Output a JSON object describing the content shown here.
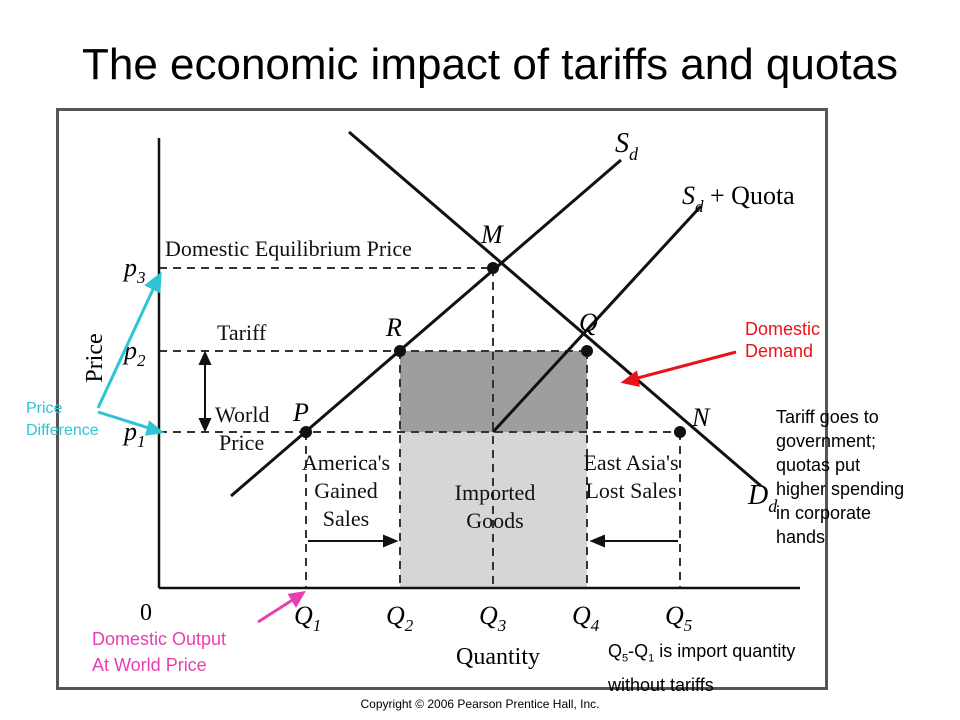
{
  "title": "The economic impact of tariffs and quotas",
  "diagram": {
    "curve_labels": {
      "sd": "S",
      "sd_sub": "d",
      "sd_quota": "S",
      "sd_quota_sub": "d",
      "sd_quota_suffix": " + Quota",
      "d": "D",
      "d_sub": "d"
    },
    "axis": {
      "y_label": "Price",
      "x_label": "Quantity",
      "origin": "0"
    },
    "price_levels": [
      {
        "letter": "p",
        "sub": "3",
        "text": "Domestic Equilibrium Price"
      },
      {
        "letter": "p",
        "sub": "2",
        "text": "Tariff"
      },
      {
        "letter": "p",
        "sub": "1",
        "text_line1": "World",
        "text_line2": "Price"
      }
    ],
    "quantities": [
      {
        "letter": "Q",
        "sub": "1"
      },
      {
        "letter": "Q",
        "sub": "2"
      },
      {
        "letter": "Q",
        "sub": "3"
      },
      {
        "letter": "Q",
        "sub": "4"
      },
      {
        "letter": "Q",
        "sub": "5"
      }
    ],
    "points": [
      "M",
      "R",
      "Q",
      "P",
      "N"
    ],
    "regions": {
      "america": [
        "America's",
        "Gained",
        "Sales"
      ],
      "imported": [
        "Imported",
        "Goods"
      ],
      "eastasia": [
        "East Asia's",
        "Lost Sales"
      ]
    }
  },
  "annotations": {
    "domestic_demand": [
      "Domestic",
      "Demand"
    ],
    "tariff_note": [
      "Tariff goes to",
      "government;",
      "quotas put",
      "higher spending",
      "in corporate",
      "hands"
    ],
    "price_difference": [
      "Price",
      "Difference"
    ],
    "domestic_output": [
      "Domestic Output",
      "At World Price"
    ],
    "import_qty_q5": "Q",
    "import_qty_q5_sub": "5",
    "import_qty_q1": "-Q",
    "import_qty_q1_sub": "1",
    "import_qty_rest": " is import quantity",
    "import_qty_line2": "without tariffs"
  },
  "copyright": "Copyright © 2006 Pearson Prentice Hall, Inc.",
  "colors": {
    "domestic_demand": "#e8131a",
    "price_difference": "#2ec4d4",
    "domestic_output": "#e83fb0",
    "dark_rect": "#9e9e9e",
    "light_rect": "#d6d6d6"
  }
}
